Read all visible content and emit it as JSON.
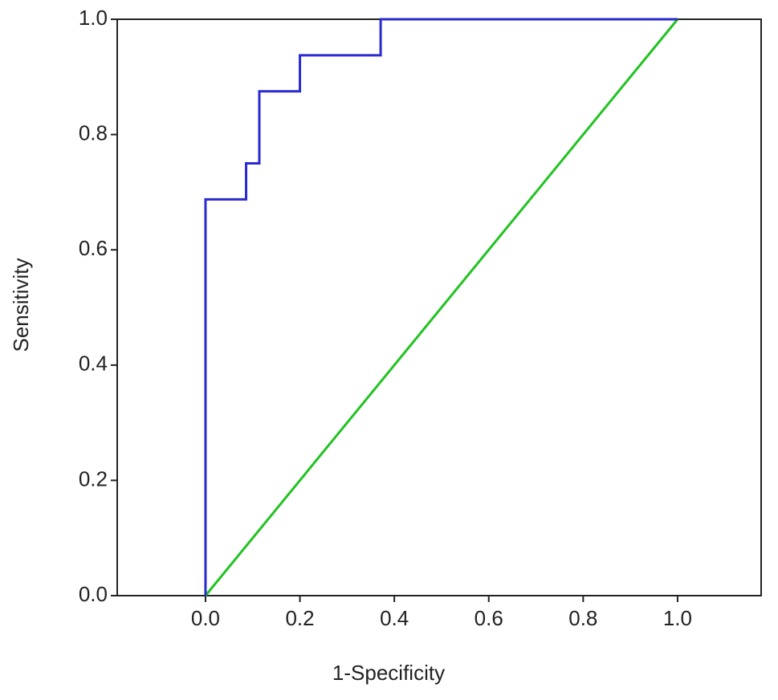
{
  "chart_data": {
    "type": "line",
    "x_label": "1-Specificity",
    "y_label": "Sensitivity",
    "series": [
      {
        "color": "#2a2ad0",
        "x": [
          0,
          0,
          0.086,
          0.086,
          0.114,
          0.114,
          0.2,
          0.2,
          0.371,
          0.371,
          1
        ],
        "values": [
          0,
          0.6875,
          0.6875,
          0.75,
          0.75,
          0.875,
          0.875,
          0.9375,
          0.9375,
          1,
          1
        ]
      },
      {
        "color": "#22c322",
        "x": [
          0,
          1
        ],
        "values": [
          0,
          1
        ]
      }
    ],
    "xlim": [
      -0.187,
      1.177
    ],
    "ylim": [
      0,
      1
    ],
    "xticks": [
      {
        "value": 0,
        "label": "0.0"
      },
      {
        "value": 0.2,
        "label": "0.2"
      },
      {
        "value": 0.4,
        "label": "0.4"
      },
      {
        "value": 0.6,
        "label": "0.6"
      },
      {
        "value": 0.8,
        "label": "0.8"
      },
      {
        "value": 1,
        "label": "1.0"
      }
    ],
    "yticks": [
      {
        "value": 0,
        "label": "0.0"
      },
      {
        "value": 0.2,
        "label": "0.2"
      },
      {
        "value": 0.4,
        "label": "0.4"
      },
      {
        "value": 0.6,
        "label": "0.6"
      },
      {
        "value": 0.8,
        "label": "0.8"
      },
      {
        "value": 1,
        "label": "1.0"
      }
    ],
    "grid": false
  }
}
